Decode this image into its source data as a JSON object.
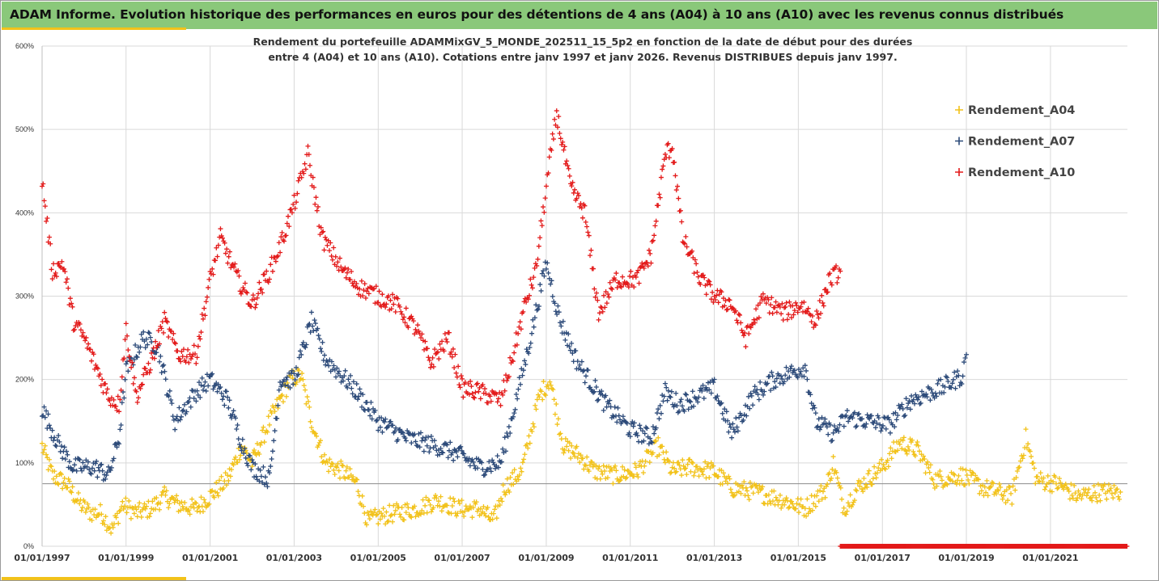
{
  "header": {
    "title": "ADAM Informe. Evolution historique des performances en euros pour des détentions de 4 ans (A04) à 10 ans (A10) avec les revenus connus distribués"
  },
  "colors": {
    "banner": "#8ac87a",
    "accent": "#f2c21a",
    "grid": "#d9d9d9",
    "reference_line": "#8c8c8c"
  },
  "chart_data": {
    "type": "scatter",
    "subtitle_lines": [
      "Rendement du portefeuille ADAMMixGV_5_MONDE_202511_15_5p2 en fonction de la date de début pour des durées",
      "entre 4 (A04) et 10 ans (A10). Cotations entre janv 1997 et janv 2026. Revenus DISTRIBUES depuis janv 1997."
    ],
    "xlabel": "",
    "ylabel": "",
    "x_axis": {
      "type": "date",
      "min": "1997-01-01",
      "max": "2022-11-01"
    },
    "x_tick_labels": [
      "01/01/1997",
      "01/01/1999",
      "01/01/2001",
      "01/01/2003",
      "01/01/2005",
      "01/01/2007",
      "01/01/2009",
      "01/01/2011",
      "01/01/2013",
      "01/01/2015",
      "01/01/2017",
      "01/01/2019",
      "01/01/2021"
    ],
    "y_axis": {
      "min": 0,
      "max": 600,
      "unit": "%",
      "ticks": [
        0,
        100,
        200,
        300,
        400,
        500,
        600
      ]
    },
    "y_tick_labels": [
      "0%",
      "100%",
      "200%",
      "300%",
      "400%",
      "500%",
      "600%"
    ],
    "reference_line_y": 75,
    "grid": {
      "horizontal": true,
      "vertical": true
    },
    "legend": {
      "position": "right",
      "entries": [
        "Rendement_A04",
        "Rendement_A07",
        "Rendement_A10"
      ]
    },
    "series": [
      {
        "name": "Rendement_A04",
        "color": "#f2c21a",
        "start": "1997-01-01",
        "end": "2022-09-01",
        "points": [
          [
            "1997-01-01",
            120
          ],
          [
            "1997-04-01",
            85
          ],
          [
            "1997-08-01",
            75
          ],
          [
            "1997-12-01",
            50
          ],
          [
            "1998-03-01",
            40
          ],
          [
            "1998-06-01",
            40
          ],
          [
            "1998-09-01",
            20
          ],
          [
            "1998-12-01",
            50
          ],
          [
            "1999-04-01",
            40
          ],
          [
            "1999-08-01",
            45
          ],
          [
            "1999-12-01",
            60
          ],
          [
            "2000-04-01",
            50
          ],
          [
            "2000-09-01",
            45
          ],
          [
            "2001-01-01",
            60
          ],
          [
            "2001-06-01",
            80
          ],
          [
            "2001-10-01",
            120
          ],
          [
            "2002-01-01",
            100
          ],
          [
            "2002-06-01",
            150
          ],
          [
            "2002-09-01",
            175
          ],
          [
            "2002-12-01",
            200
          ],
          [
            "2003-03-01",
            205
          ],
          [
            "2003-06-01",
            150
          ],
          [
            "2003-10-01",
            100
          ],
          [
            "2004-03-01",
            90
          ],
          [
            "2004-07-01",
            75
          ],
          [
            "2004-10-01",
            30
          ],
          [
            "2005-01-01",
            35
          ],
          [
            "2005-06-01",
            40
          ],
          [
            "2005-12-01",
            45
          ],
          [
            "2006-06-01",
            55
          ],
          [
            "2006-12-01",
            45
          ],
          [
            "2007-06-01",
            45
          ],
          [
            "2007-10-01",
            30
          ],
          [
            "2008-01-01",
            70
          ],
          [
            "2008-06-01",
            90
          ],
          [
            "2008-11-01",
            180
          ],
          [
            "2009-02-01",
            200
          ],
          [
            "2009-06-01",
            120
          ],
          [
            "2009-10-01",
            110
          ],
          [
            "2010-03-01",
            90
          ],
          [
            "2010-09-01",
            85
          ],
          [
            "2011-03-01",
            90
          ],
          [
            "2011-09-01",
            120
          ],
          [
            "2012-01-01",
            90
          ],
          [
            "2012-06-01",
            95
          ],
          [
            "2013-01-01",
            90
          ],
          [
            "2013-06-01",
            70
          ],
          [
            "2014-01-01",
            65
          ],
          [
            "2014-09-01",
            55
          ],
          [
            "2015-03-01",
            45
          ],
          [
            "2015-09-01",
            70
          ],
          [
            "2015-11-01",
            100
          ],
          [
            "2016-02-01",
            45
          ],
          [
            "2016-06-01",
            70
          ],
          [
            "2017-01-01",
            95
          ],
          [
            "2017-06-01",
            125
          ],
          [
            "2017-11-01",
            115
          ],
          [
            "2018-04-01",
            80
          ],
          [
            "2018-12-01",
            85
          ],
          [
            "2019-06-01",
            70
          ],
          [
            "2020-02-01",
            60
          ],
          [
            "2020-06-01",
            130
          ],
          [
            "2020-09-01",
            80
          ],
          [
            "2021-03-01",
            75
          ],
          [
            "2021-09-01",
            60
          ],
          [
            "2022-03-01",
            65
          ],
          [
            "2022-09-01",
            65
          ]
        ]
      },
      {
        "name": "Rendement_A07",
        "color": "#2c4a79",
        "start": "1997-01-01",
        "end": "2019-01-01",
        "points": [
          [
            "1997-01-01",
            165
          ],
          [
            "1997-06-01",
            120
          ],
          [
            "1997-10-01",
            95
          ],
          [
            "1998-04-01",
            95
          ],
          [
            "1998-08-01",
            85
          ],
          [
            "1998-11-01",
            130
          ],
          [
            "1999-01-01",
            210
          ],
          [
            "1999-06-01",
            250
          ],
          [
            "1999-10-01",
            240
          ],
          [
            "2000-03-01",
            150
          ],
          [
            "2000-09-01",
            185
          ],
          [
            "2001-01-01",
            200
          ],
          [
            "2001-06-01",
            175
          ],
          [
            "2001-10-01",
            125
          ],
          [
            "2002-01-01",
            95
          ],
          [
            "2002-06-01",
            80
          ],
          [
            "2002-09-01",
            200
          ],
          [
            "2003-01-01",
            200
          ],
          [
            "2003-06-01",
            270
          ],
          [
            "2003-10-01",
            225
          ],
          [
            "2004-06-01",
            190
          ],
          [
            "2005-01-01",
            150
          ],
          [
            "2005-09-01",
            130
          ],
          [
            "2006-06-01",
            120
          ],
          [
            "2006-12-01",
            110
          ],
          [
            "2007-06-01",
            95
          ],
          [
            "2007-12-01",
            100
          ],
          [
            "2008-03-01",
            150
          ],
          [
            "2008-08-01",
            240
          ],
          [
            "2009-01-01",
            340
          ],
          [
            "2009-05-01",
            270
          ],
          [
            "2009-10-01",
            220
          ],
          [
            "2010-06-01",
            170
          ],
          [
            "2011-01-01",
            140
          ],
          [
            "2011-07-01",
            130
          ],
          [
            "2011-11-01",
            185
          ],
          [
            "2012-03-01",
            170
          ],
          [
            "2012-08-01",
            180
          ],
          [
            "2013-01-01",
            190
          ],
          [
            "2013-06-01",
            135
          ],
          [
            "2013-12-01",
            180
          ],
          [
            "2014-06-01",
            200
          ],
          [
            "2015-03-01",
            215
          ],
          [
            "2015-06-01",
            150
          ],
          [
            "2015-11-01",
            135
          ],
          [
            "2016-03-01",
            155
          ],
          [
            "2016-09-01",
            150
          ],
          [
            "2017-03-01",
            145
          ],
          [
            "2017-09-01",
            175
          ],
          [
            "2018-06-01",
            190
          ],
          [
            "2018-12-01",
            205
          ],
          [
            "2019-01-01",
            230
          ]
        ]
      },
      {
        "name": "Rendement_A10",
        "color": "#e31a1a",
        "start": "1997-01-01",
        "end": "2016-01-01",
        "points": [
          [
            "1997-01-01",
            440
          ],
          [
            "1997-04-01",
            330
          ],
          [
            "1997-07-01",
            340
          ],
          [
            "1997-10-01",
            270
          ],
          [
            "1998-01-01",
            250
          ],
          [
            "1998-05-01",
            210
          ],
          [
            "1998-08-01",
            180
          ],
          [
            "1998-11-01",
            170
          ],
          [
            "1999-01-01",
            260
          ],
          [
            "1999-04-01",
            180
          ],
          [
            "1999-08-01",
            220
          ],
          [
            "1999-12-01",
            270
          ],
          [
            "2000-04-01",
            230
          ],
          [
            "2000-09-01",
            230
          ],
          [
            "2001-01-01",
            320
          ],
          [
            "2001-04-01",
            370
          ],
          [
            "2001-09-01",
            320
          ],
          [
            "2002-01-01",
            290
          ],
          [
            "2002-06-01",
            330
          ],
          [
            "2002-09-01",
            360
          ],
          [
            "2003-01-01",
            410
          ],
          [
            "2003-05-01",
            470
          ],
          [
            "2003-09-01",
            370
          ],
          [
            "2004-03-01",
            330
          ],
          [
            "2004-08-01",
            310
          ],
          [
            "2005-01-01",
            300
          ],
          [
            "2005-06-01",
            290
          ],
          [
            "2005-12-01",
            260
          ],
          [
            "2006-04-01",
            220
          ],
          [
            "2006-09-01",
            250
          ],
          [
            "2007-01-01",
            190
          ],
          [
            "2007-06-01",
            185
          ],
          [
            "2007-12-01",
            175
          ],
          [
            "2008-03-01",
            220
          ],
          [
            "2008-07-01",
            290
          ],
          [
            "2008-10-01",
            330
          ],
          [
            "2009-01-01",
            430
          ],
          [
            "2009-04-01",
            520
          ],
          [
            "2009-08-01",
            430
          ],
          [
            "2009-12-01",
            400
          ],
          [
            "2010-04-01",
            280
          ],
          [
            "2010-09-01",
            320
          ],
          [
            "2011-03-01",
            320
          ],
          [
            "2011-07-01",
            350
          ],
          [
            "2011-11-01",
            470
          ],
          [
            "2012-01-01",
            480
          ],
          [
            "2012-04-01",
            370
          ],
          [
            "2012-09-01",
            320
          ],
          [
            "2013-01-01",
            300
          ],
          [
            "2013-06-01",
            290
          ],
          [
            "2013-10-01",
            250
          ],
          [
            "2014-03-01",
            295
          ],
          [
            "2014-09-01",
            280
          ],
          [
            "2015-02-01",
            290
          ],
          [
            "2015-06-01",
            270
          ],
          [
            "2015-10-01",
            320
          ],
          [
            "2016-01-01",
            330
          ]
        ]
      }
    ],
    "zero_marker_band": {
      "color": "#e31a1a",
      "from": "2016-01-01",
      "to": "2022-11-01",
      "value": 0
    }
  }
}
